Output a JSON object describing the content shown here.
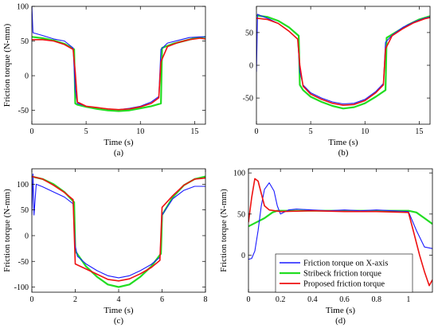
{
  "colors": {
    "x_axis": "#1a1aff",
    "stribeck": "#22dd22",
    "proposed": "#ee1111"
  },
  "legend": [
    {
      "label": "Friction torque on X-axis",
      "color": "#1a1aff"
    },
    {
      "label": "Stribeck friction torque",
      "color": "#22dd22"
    },
    {
      "label": "Proposed friction torque",
      "color": "#ee1111"
    }
  ],
  "chart_data": [
    {
      "type": "line",
      "caption": "(a)",
      "xlabel": "Time (s)",
      "ylabel": "Friction torque (N-mm)",
      "xlim": [
        0,
        16
      ],
      "ylim": [
        -70,
        100
      ],
      "xticks": [
        0,
        5,
        10,
        15
      ],
      "yticks": [
        -50,
        0,
        50,
        100
      ],
      "series": [
        {
          "key": "x_axis",
          "values": [
            [
              0,
              100
            ],
            [
              0.1,
              62
            ],
            [
              1,
              58
            ],
            [
              2,
              53
            ],
            [
              3,
              50
            ],
            [
              3.8,
              40
            ],
            [
              4,
              -20
            ],
            [
              4.2,
              -40
            ],
            [
              5,
              -44
            ],
            [
              6,
              -46
            ],
            [
              7,
              -48
            ],
            [
              8,
              -49
            ],
            [
              9,
              -47
            ],
            [
              10,
              -44
            ],
            [
              11,
              -38
            ],
            [
              11.7,
              -30
            ],
            [
              11.9,
              38
            ],
            [
              12.5,
              47
            ],
            [
              13.5,
              51
            ],
            [
              14.5,
              55
            ],
            [
              15.5,
              56
            ],
            [
              16,
              56
            ]
          ]
        },
        {
          "key": "stribeck",
          "values": [
            [
              0,
              56
            ],
            [
              1,
              54
            ],
            [
              2,
              51
            ],
            [
              3,
              46
            ],
            [
              3.9,
              38
            ],
            [
              4,
              -40
            ],
            [
              4.2,
              -42
            ],
            [
              5,
              -45
            ],
            [
              6,
              -48
            ],
            [
              7,
              -50
            ],
            [
              8,
              -51
            ],
            [
              9,
              -50
            ],
            [
              10,
              -47
            ],
            [
              11,
              -44
            ],
            [
              11.9,
              -40
            ],
            [
              12,
              40
            ],
            [
              13,
              46
            ],
            [
              14,
              50
            ],
            [
              15,
              54
            ],
            [
              16,
              56
            ]
          ]
        },
        {
          "key": "proposed",
          "values": [
            [
              0,
              52
            ],
            [
              1,
              52
            ],
            [
              2,
              50
            ],
            [
              3,
              45
            ],
            [
              3.8,
              38
            ],
            [
              4,
              5
            ],
            [
              4.2,
              -38
            ],
            [
              5,
              -44
            ],
            [
              6,
              -46
            ],
            [
              7,
              -48
            ],
            [
              8,
              -49
            ],
            [
              9,
              -48
            ],
            [
              10,
              -45
            ],
            [
              11,
              -40
            ],
            [
              11.7,
              -32
            ],
            [
              11.9,
              20
            ],
            [
              12.5,
              42
            ],
            [
              13.5,
              48
            ],
            [
              14.5,
              52
            ],
            [
              15.5,
              54
            ],
            [
              16,
              53
            ]
          ]
        }
      ]
    },
    {
      "type": "line",
      "caption": "(b)",
      "xlabel": "Time (s)",
      "ylabel": "",
      "xlim": [
        0,
        16
      ],
      "ylim": [
        -90,
        90
      ],
      "xticks": [
        0,
        5,
        10,
        15
      ],
      "yticks": [
        -50,
        0,
        50
      ],
      "series": [
        {
          "key": "x_axis",
          "values": [
            [
              0,
              -10
            ],
            [
              0.1,
              78
            ],
            [
              0.5,
              75
            ],
            [
              1,
              72
            ],
            [
              2,
              64
            ],
            [
              3,
              52
            ],
            [
              3.8,
              40
            ],
            [
              4,
              -10
            ],
            [
              4.3,
              -30
            ],
            [
              5,
              -42
            ],
            [
              6,
              -50
            ],
            [
              7,
              -56
            ],
            [
              8,
              -59
            ],
            [
              9,
              -58
            ],
            [
              10,
              -52
            ],
            [
              11,
              -40
            ],
            [
              11.7,
              -28
            ],
            [
              11.9,
              35
            ],
            [
              12.5,
              46
            ],
            [
              13.5,
              58
            ],
            [
              14.5,
              66
            ],
            [
              15.5,
              72
            ],
            [
              16,
              74
            ]
          ]
        },
        {
          "key": "stribeck",
          "values": [
            [
              0,
              76
            ],
            [
              1,
              74
            ],
            [
              2,
              68
            ],
            [
              3,
              58
            ],
            [
              3.9,
              45
            ],
            [
              4,
              -30
            ],
            [
              4.3,
              -38
            ],
            [
              5,
              -48
            ],
            [
              6,
              -56
            ],
            [
              7,
              -62
            ],
            [
              8,
              -66
            ],
            [
              9,
              -64
            ],
            [
              10,
              -58
            ],
            [
              11,
              -48
            ],
            [
              11.9,
              -38
            ],
            [
              12,
              42
            ],
            [
              13,
              52
            ],
            [
              14,
              62
            ],
            [
              15,
              70
            ],
            [
              16,
              75
            ]
          ]
        },
        {
          "key": "proposed",
          "values": [
            [
              0,
              72
            ],
            [
              1,
              70
            ],
            [
              2,
              64
            ],
            [
              3,
              52
            ],
            [
              3.8,
              40
            ],
            [
              4,
              0
            ],
            [
              4.3,
              -32
            ],
            [
              5,
              -44
            ],
            [
              6,
              -52
            ],
            [
              7,
              -58
            ],
            [
              8,
              -61
            ],
            [
              9,
              -60
            ],
            [
              10,
              -54
            ],
            [
              11,
              -42
            ],
            [
              11.7,
              -30
            ],
            [
              11.9,
              25
            ],
            [
              12.5,
              45
            ],
            [
              13.5,
              56
            ],
            [
              14.5,
              65
            ],
            [
              15.5,
              71
            ],
            [
              16,
              73
            ]
          ]
        }
      ]
    },
    {
      "type": "line",
      "caption": "(c)",
      "xlabel": "Time (s)",
      "ylabel": "Friction torque (N-mm)",
      "xlim": [
        0,
        8
      ],
      "ylim": [
        -110,
        130
      ],
      "xticks": [
        0,
        2,
        4,
        6,
        8
      ],
      "yticks": [
        -100,
        -50,
        0,
        50,
        100
      ],
      "series": [
        {
          "key": "x_axis",
          "values": [
            [
              0,
              40
            ],
            [
              0.05,
              120
            ],
            [
              0.1,
              40
            ],
            [
              0.2,
              100
            ],
            [
              0.5,
              95
            ],
            [
              1,
              85
            ],
            [
              1.5,
              75
            ],
            [
              1.9,
              62
            ],
            [
              2,
              -20
            ],
            [
              2.1,
              -40
            ],
            [
              2.5,
              -55
            ],
            [
              3,
              -68
            ],
            [
              3.5,
              -78
            ],
            [
              4,
              -82
            ],
            [
              4.5,
              -78
            ],
            [
              5,
              -68
            ],
            [
              5.5,
              -56
            ],
            [
              5.9,
              -42
            ],
            [
              6,
              40
            ],
            [
              6.5,
              72
            ],
            [
              7,
              88
            ],
            [
              7.5,
              96
            ],
            [
              8,
              96
            ]
          ]
        },
        {
          "key": "stribeck",
          "values": [
            [
              0,
              115
            ],
            [
              0.5,
              110
            ],
            [
              1,
              100
            ],
            [
              1.5,
              85
            ],
            [
              1.95,
              65
            ],
            [
              2,
              -30
            ],
            [
              2.5,
              -60
            ],
            [
              3,
              -80
            ],
            [
              3.5,
              -95
            ],
            [
              4,
              -100
            ],
            [
              4.5,
              -95
            ],
            [
              5,
              -80
            ],
            [
              5.5,
              -60
            ],
            [
              5.95,
              -35
            ],
            [
              6,
              40
            ],
            [
              6.5,
              75
            ],
            [
              7,
              98
            ],
            [
              7.5,
              110
            ],
            [
              8,
              115
            ]
          ]
        },
        {
          "key": "proposed",
          "values": [
            [
              0,
              115
            ],
            [
              0.5,
              110
            ],
            [
              1,
              98
            ],
            [
              1.5,
              84
            ],
            [
              1.9,
              70
            ],
            [
              2,
              -55
            ],
            [
              2.5,
              -65
            ],
            [
              3,
              -75
            ],
            [
              3.5,
              -85
            ],
            [
              4,
              -88
            ],
            [
              4.5,
              -84
            ],
            [
              5,
              -74
            ],
            [
              5.5,
              -62
            ],
            [
              5.9,
              -48
            ],
            [
              6,
              55
            ],
            [
              6.5,
              78
            ],
            [
              7,
              98
            ],
            [
              7.5,
              110
            ],
            [
              8,
              112
            ]
          ]
        }
      ]
    },
    {
      "type": "line",
      "caption": "(d)",
      "xlabel": "Time (s)",
      "ylabel": "Friction torque (N-mm)",
      "xlim": [
        0,
        1.15
      ],
      "ylim": [
        -45,
        105
      ],
      "xticks": [
        0,
        0.2,
        0.4,
        0.6,
        0.8,
        1
      ],
      "yticks": [
        0,
        50,
        100
      ],
      "series": [
        {
          "key": "x_axis",
          "values": [
            [
              0,
              -5
            ],
            [
              0.02,
              -4
            ],
            [
              0.04,
              5
            ],
            [
              0.06,
              30
            ],
            [
              0.08,
              60
            ],
            [
              0.1,
              80
            ],
            [
              0.13,
              88
            ],
            [
              0.16,
              78
            ],
            [
              0.18,
              60
            ],
            [
              0.2,
              50
            ],
            [
              0.25,
              55
            ],
            [
              0.3,
              56
            ],
            [
              0.4,
              55
            ],
            [
              0.5,
              54
            ],
            [
              0.6,
              55
            ],
            [
              0.7,
              54
            ],
            [
              0.8,
              55
            ],
            [
              0.9,
              54
            ],
            [
              1,
              53
            ],
            [
              1.05,
              30
            ],
            [
              1.1,
              10
            ],
            [
              1.15,
              8
            ]
          ]
        },
        {
          "key": "stribeck",
          "values": [
            [
              0,
              35
            ],
            [
              0.05,
              40
            ],
            [
              0.1,
              45
            ],
            [
              0.15,
              52
            ],
            [
              0.18,
              54
            ],
            [
              0.2,
              54
            ],
            [
              0.4,
              54
            ],
            [
              0.6,
              54
            ],
            [
              0.8,
              54
            ],
            [
              1,
              54
            ],
            [
              1.05,
              52
            ],
            [
              1.1,
              45
            ],
            [
              1.15,
              38
            ]
          ]
        },
        {
          "key": "proposed",
          "values": [
            [
              0,
              40
            ],
            [
              0.02,
              70
            ],
            [
              0.04,
              93
            ],
            [
              0.06,
              90
            ],
            [
              0.08,
              75
            ],
            [
              0.1,
              60
            ],
            [
              0.13,
              55
            ],
            [
              0.2,
              53
            ],
            [
              0.4,
              54
            ],
            [
              0.6,
              53
            ],
            [
              0.8,
              53
            ],
            [
              1,
              52
            ],
            [
              1.03,
              30
            ],
            [
              1.07,
              0
            ],
            [
              1.1,
              -20
            ],
            [
              1.13,
              -37
            ],
            [
              1.15,
              -30
            ]
          ]
        }
      ]
    }
  ]
}
